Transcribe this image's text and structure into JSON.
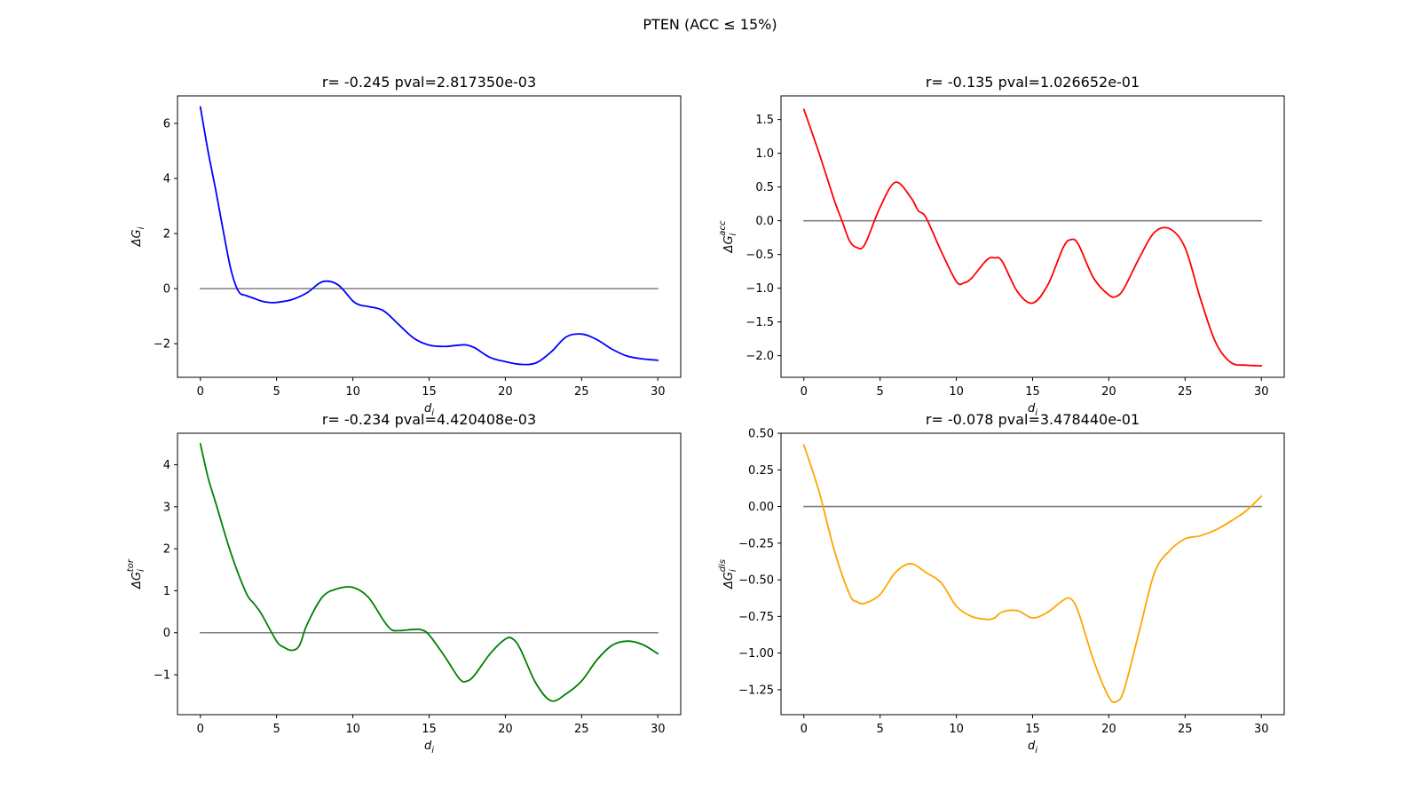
{
  "figure": {
    "suptitle": "PTEN (ACC ≤ 15%)"
  },
  "chart_data": [
    {
      "type": "line",
      "title": "r= -0.245 pval=2.817350e-03",
      "xlabel": "d_i",
      "ylabel": "ΔG_i",
      "ylabel_base": "ΔG",
      "ylabel_sub": "i",
      "ylabel_sup": "",
      "xlim": [
        -1.5,
        31.5
      ],
      "ylim": [
        -3.22,
        7.0
      ],
      "xticks": [
        0,
        5,
        10,
        15,
        20,
        25,
        30
      ],
      "yticks": [
        -2,
        0,
        2,
        4,
        6
      ],
      "ytick_labels": [
        "−2",
        "0",
        "2",
        "4",
        "6"
      ],
      "series": [
        {
          "color": "#0000ff",
          "x": [
            0,
            0.5,
            1,
            1.5,
            2,
            2.5,
            3,
            3.5,
            4,
            4.5,
            5,
            6,
            7,
            8,
            9,
            10,
            10.5,
            11,
            12,
            13,
            14,
            15,
            16,
            17,
            17.5,
            18,
            19,
            20,
            21,
            22,
            23,
            24,
            25,
            26,
            27,
            28,
            29,
            30
          ],
          "y": [
            6.6,
            5.0,
            3.6,
            2.1,
            0.7,
            -0.1,
            -0.25,
            -0.35,
            -0.45,
            -0.5,
            -0.5,
            -0.4,
            -0.15,
            0.25,
            0.15,
            -0.45,
            -0.6,
            -0.65,
            -0.8,
            -1.3,
            -1.8,
            -2.05,
            -2.1,
            -2.05,
            -2.05,
            -2.15,
            -2.5,
            -2.65,
            -2.75,
            -2.7,
            -2.3,
            -1.75,
            -1.65,
            -1.85,
            -2.2,
            -2.45,
            -2.55,
            -2.6
          ]
        },
        {
          "name": "baseline",
          "color": "#7f7f7f",
          "x": [
            0,
            30
          ],
          "y": [
            0,
            0
          ]
        }
      ]
    },
    {
      "type": "line",
      "title": "r= -0.135 pval=1.026652e-01",
      "xlabel": "d_i",
      "ylabel": "ΔG_i^acc",
      "ylabel_base": "ΔG",
      "ylabel_sub": "i",
      "ylabel_sup": "acc",
      "xlim": [
        -1.5,
        31.5
      ],
      "ylim": [
        -2.32,
        1.85
      ],
      "xticks": [
        0,
        5,
        10,
        15,
        20,
        25,
        30
      ],
      "yticks": [
        -2.0,
        -1.5,
        -1.0,
        -0.5,
        0.0,
        0.5,
        1.0,
        1.5
      ],
      "ytick_labels": [
        "−2.0",
        "−1.5",
        "−1.0",
        "−0.5",
        "0.0",
        "0.5",
        "1.0",
        "1.5"
      ],
      "series": [
        {
          "color": "#ff0000",
          "x": [
            0,
            1,
            2,
            2.5,
            3,
            3.5,
            4,
            5,
            6,
            7,
            7.5,
            8,
            9,
            10,
            10.5,
            11,
            12,
            12.5,
            13,
            14,
            15,
            16,
            17,
            17.5,
            18,
            19,
            20,
            20.5,
            21,
            22,
            23,
            24,
            25,
            26,
            27,
            28,
            29,
            30
          ],
          "y": [
            1.65,
            1.0,
            0.3,
            0.0,
            -0.3,
            -0.4,
            -0.35,
            0.2,
            0.57,
            0.35,
            0.15,
            0.05,
            -0.45,
            -0.9,
            -0.92,
            -0.85,
            -0.58,
            -0.55,
            -0.6,
            -1.05,
            -1.22,
            -0.95,
            -0.4,
            -0.28,
            -0.35,
            -0.85,
            -1.1,
            -1.12,
            -1.0,
            -0.55,
            -0.17,
            -0.12,
            -0.4,
            -1.15,
            -1.8,
            -2.1,
            -2.14,
            -2.15
          ]
        },
        {
          "name": "baseline",
          "color": "#7f7f7f",
          "x": [
            0,
            30
          ],
          "y": [
            0,
            0
          ]
        }
      ]
    },
    {
      "type": "line",
      "title": "r= -0.234 pval=4.420408e-03",
      "xlabel": "d_i",
      "ylabel": "ΔG_i^tor",
      "ylabel_base": "ΔG",
      "ylabel_sub": "i",
      "ylabel_sup": "tor",
      "xlim": [
        -1.5,
        31.5
      ],
      "ylim": [
        -1.95,
        4.75
      ],
      "xticks": [
        0,
        5,
        10,
        15,
        20,
        25,
        30
      ],
      "yticks": [
        -1,
        0,
        1,
        2,
        3,
        4
      ],
      "ytick_labels": [
        "−1",
        "0",
        "1",
        "2",
        "3",
        "4"
      ],
      "series": [
        {
          "color": "#008000",
          "x": [
            0,
            0.5,
            1,
            2,
            3,
            3.5,
            4,
            5,
            5.5,
            6,
            6.5,
            7,
            8,
            9,
            10,
            11,
            12,
            12.5,
            13,
            14,
            14.5,
            15,
            16,
            17,
            17.5,
            18,
            19,
            20,
            20.5,
            21,
            22,
            23,
            24,
            25,
            26,
            27,
            28,
            29,
            30
          ],
          "y": [
            4.5,
            3.7,
            3.1,
            1.9,
            0.95,
            0.7,
            0.45,
            -0.2,
            -0.35,
            -0.42,
            -0.3,
            0.2,
            0.85,
            1.05,
            1.08,
            0.85,
            0.3,
            0.08,
            0.05,
            0.08,
            0.07,
            -0.05,
            -0.55,
            -1.1,
            -1.15,
            -1.0,
            -0.5,
            -0.15,
            -0.15,
            -0.4,
            -1.2,
            -1.62,
            -1.45,
            -1.15,
            -0.65,
            -0.3,
            -0.2,
            -0.28,
            -0.5
          ]
        },
        {
          "name": "baseline",
          "color": "#7f7f7f",
          "x": [
            0,
            30
          ],
          "y": [
            0,
            0
          ]
        }
      ]
    },
    {
      "type": "line",
      "title": "r= -0.078 pval=3.478440e-01",
      "xlabel": "d_i",
      "ylabel": "ΔG_i^dis",
      "ylabel_base": "ΔG",
      "ylabel_sub": "i",
      "ylabel_sup": "dis",
      "xlim": [
        -1.5,
        31.5
      ],
      "ylim": [
        -1.42,
        0.5
      ],
      "xticks": [
        0,
        5,
        10,
        15,
        20,
        25,
        30
      ],
      "yticks": [
        -1.25,
        -1.0,
        -0.75,
        -0.5,
        -0.25,
        0.0,
        0.25,
        0.5
      ],
      "ytick_labels": [
        "−1.25",
        "−1.00",
        "−0.75",
        "−0.50",
        "−0.25",
        "0.00",
        "0.25",
        "0.50"
      ],
      "series": [
        {
          "color": "#ffa500",
          "x": [
            0,
            1,
            2,
            3,
            3.5,
            4,
            5,
            6,
            7,
            8,
            9,
            10,
            11,
            12,
            12.5,
            13,
            14,
            15,
            16,
            17,
            17.5,
            18,
            19,
            20,
            20.5,
            21,
            22,
            23,
            24,
            25,
            26,
            27,
            28,
            29,
            30
          ],
          "y": [
            0.42,
            0.1,
            -0.3,
            -0.6,
            -0.65,
            -0.66,
            -0.6,
            -0.45,
            -0.39,
            -0.45,
            -0.52,
            -0.68,
            -0.75,
            -0.77,
            -0.76,
            -0.72,
            -0.71,
            -0.76,
            -0.72,
            -0.64,
            -0.63,
            -0.72,
            -1.05,
            -1.3,
            -1.33,
            -1.25,
            -0.85,
            -0.45,
            -0.3,
            -0.22,
            -0.2,
            -0.16,
            -0.1,
            -0.03,
            0.07
          ]
        },
        {
          "name": "baseline",
          "color": "#7f7f7f",
          "x": [
            0,
            30
          ],
          "y": [
            0,
            0
          ]
        }
      ]
    }
  ]
}
